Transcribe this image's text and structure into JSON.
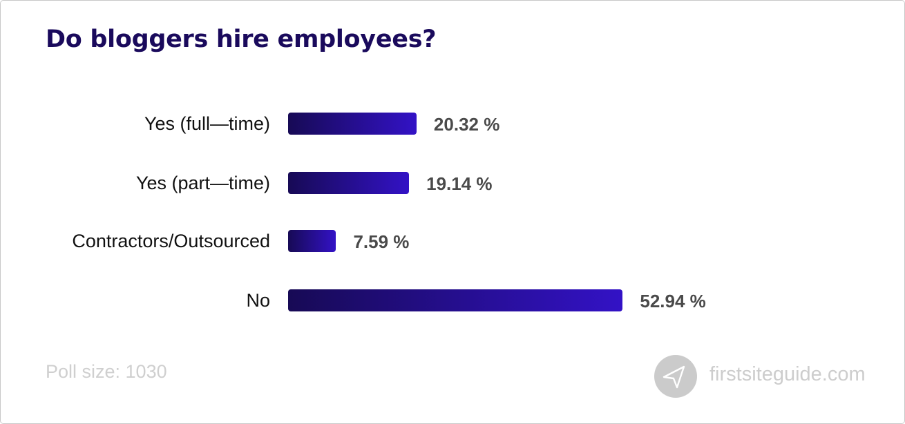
{
  "title": "Do bloggers hire employees?",
  "footer": {
    "poll_size": "Poll size: 1030",
    "brand": "firstsiteguide.com",
    "brand_icon": "paper-plane-icon"
  },
  "colors": {
    "title": "#1a0a5c",
    "bar_start": "#170a55",
    "bar_end": "#3312c6",
    "value_text": "#4a4a4a",
    "muted": "#cdcdcd"
  },
  "chart_data": {
    "type": "bar",
    "orientation": "horizontal",
    "title": "Do bloggers hire employees?",
    "categories": [
      "Yes (full—time)",
      "Yes (part—time)",
      "Contractors/Outsourced",
      "No"
    ],
    "values": [
      20.32,
      19.14,
      7.59,
      52.94
    ],
    "value_labels": [
      "20.32 %",
      "19.14 %",
      "7.59 %",
      "52.94 %"
    ],
    "unit": "%",
    "xlabel": "",
    "ylabel": "",
    "grid": false,
    "legend": "none",
    "annotations": [
      "Poll size: 1030"
    ]
  }
}
